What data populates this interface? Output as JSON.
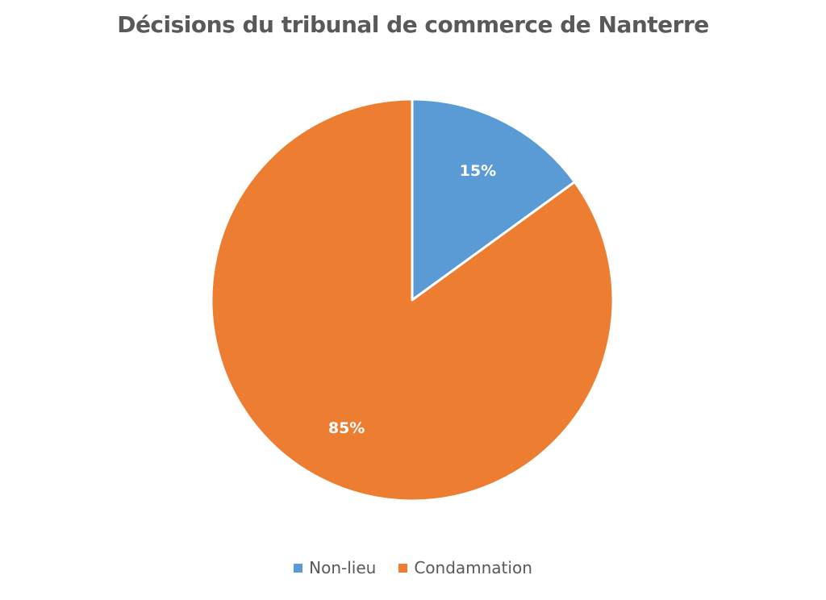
{
  "chart_data": {
    "type": "pie",
    "title": "Décisions du tribunal de commerce de Nanterre",
    "slices": [
      {
        "label": "Non-lieu",
        "value": 15,
        "display": "15%",
        "color": "#5b9bd5"
      },
      {
        "label": "Condamnation",
        "value": 85,
        "display": "85%",
        "color": "#ed7d31"
      }
    ],
    "legend_position": "bottom",
    "start_angle": "12 o'clock",
    "direction": "clockwise"
  }
}
